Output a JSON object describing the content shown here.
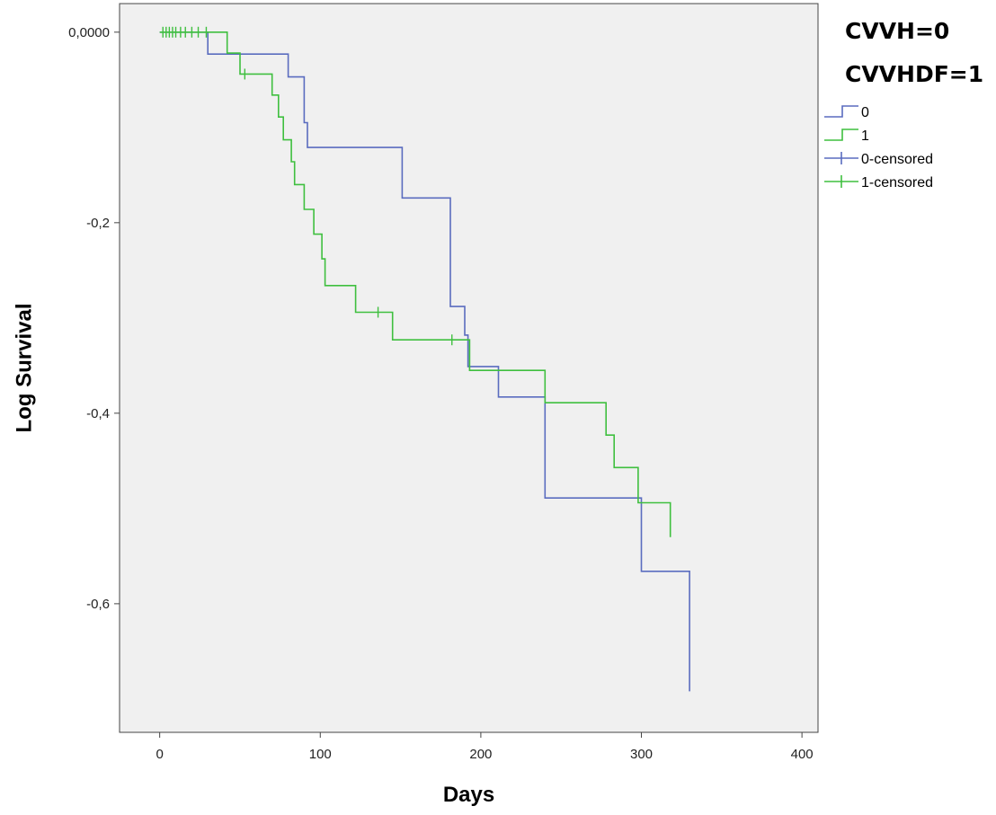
{
  "chart_data": {
    "type": "line",
    "subtype": "step",
    "title": "",
    "xlabel": "Days",
    "ylabel": "Log Survival",
    "xlim": [
      -25,
      410
    ],
    "ylim": [
      -0.735,
      0.03
    ],
    "x_ticks": [
      0,
      100,
      200,
      300,
      400
    ],
    "x_tick_labels": [
      "0",
      "100",
      "200",
      "300",
      "400"
    ],
    "y_ticks": [
      0,
      -0.2,
      -0.4,
      -0.6
    ],
    "y_tick_labels": [
      "0,0000",
      "-0,2",
      "-0,4",
      "-0,6"
    ],
    "grid": false,
    "background": "#f0f0f0",
    "legend_title_lines": [
      "CVVH=0",
      "CVVHDF=1"
    ],
    "legend_position": "right",
    "legend": [
      {
        "label": "0",
        "kind": "line",
        "color": "#5a6cbf"
      },
      {
        "label": "1",
        "kind": "line",
        "color": "#3fbf3f"
      },
      {
        "label": "0-censored",
        "kind": "censor",
        "color": "#5a6cbf"
      },
      {
        "label": "1-censored",
        "kind": "censor",
        "color": "#3fbf3f"
      }
    ],
    "series": [
      {
        "name": "0",
        "color": "#5a6cbf",
        "points": [
          [
            0,
            0
          ],
          [
            30,
            0
          ],
          [
            30,
            -0.023
          ],
          [
            80,
            -0.023
          ],
          [
            80,
            -0.047
          ],
          [
            90,
            -0.047
          ],
          [
            90,
            -0.095
          ],
          [
            92,
            -0.095
          ],
          [
            92,
            -0.121
          ],
          [
            151,
            -0.121
          ],
          [
            151,
            -0.174
          ],
          [
            181,
            -0.174
          ],
          [
            181,
            -0.288
          ],
          [
            190,
            -0.288
          ],
          [
            190,
            -0.318
          ],
          [
            192,
            -0.318
          ],
          [
            192,
            -0.351
          ],
          [
            211,
            -0.351
          ],
          [
            211,
            -0.383
          ],
          [
            240,
            -0.383
          ],
          [
            240,
            -0.489
          ],
          [
            300,
            -0.489
          ],
          [
            300,
            -0.566
          ],
          [
            330,
            -0.566
          ],
          [
            330,
            -0.692
          ]
        ],
        "censored": []
      },
      {
        "name": "1",
        "color": "#3fbf3f",
        "points": [
          [
            0,
            0
          ],
          [
            42,
            0
          ],
          [
            42,
            -0.022
          ],
          [
            50,
            -0.022
          ],
          [
            50,
            -0.044
          ],
          [
            70,
            -0.044
          ],
          [
            70,
            -0.066
          ],
          [
            74,
            -0.066
          ],
          [
            74,
            -0.089
          ],
          [
            77,
            -0.089
          ],
          [
            77,
            -0.113
          ],
          [
            82,
            -0.113
          ],
          [
            82,
            -0.136
          ],
          [
            84,
            -0.136
          ],
          [
            84,
            -0.16
          ],
          [
            90,
            -0.16
          ],
          [
            90,
            -0.186
          ],
          [
            96,
            -0.186
          ],
          [
            96,
            -0.212
          ],
          [
            101,
            -0.212
          ],
          [
            101,
            -0.238
          ],
          [
            103,
            -0.238
          ],
          [
            103,
            -0.266
          ],
          [
            122,
            -0.266
          ],
          [
            122,
            -0.294
          ],
          [
            145,
            -0.294
          ],
          [
            145,
            -0.323
          ],
          [
            193,
            -0.323
          ],
          [
            193,
            -0.355
          ],
          [
            240,
            -0.355
          ],
          [
            240,
            -0.389
          ],
          [
            278,
            -0.389
          ],
          [
            278,
            -0.423
          ],
          [
            283,
            -0.423
          ],
          [
            283,
            -0.457
          ],
          [
            298,
            -0.457
          ],
          [
            298,
            -0.494
          ],
          [
            318,
            -0.494
          ],
          [
            318,
            -0.53
          ]
        ],
        "censored": [
          [
            2,
            0
          ],
          [
            4,
            0
          ],
          [
            6,
            0
          ],
          [
            8,
            0
          ],
          [
            10,
            0
          ],
          [
            13,
            0
          ],
          [
            16,
            0
          ],
          [
            20,
            0
          ],
          [
            24,
            0
          ],
          [
            29,
            0
          ],
          [
            53,
            -0.044
          ],
          [
            136,
            -0.294
          ],
          [
            182,
            -0.323
          ]
        ]
      }
    ]
  }
}
